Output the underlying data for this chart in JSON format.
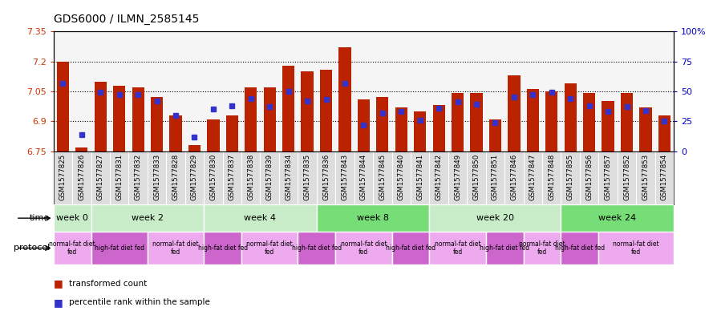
{
  "title": "GDS6000 / ILMN_2585145",
  "samples": [
    "GSM1577825",
    "GSM1577826",
    "GSM1577827",
    "GSM1577831",
    "GSM1577832",
    "GSM1577833",
    "GSM1577828",
    "GSM1577829",
    "GSM1577830",
    "GSM1577837",
    "GSM1577838",
    "GSM1577839",
    "GSM1577834",
    "GSM1577835",
    "GSM1577836",
    "GSM1577843",
    "GSM1577844",
    "GSM1577845",
    "GSM1577840",
    "GSM1577841",
    "GSM1577842",
    "GSM1577849",
    "GSM1577850",
    "GSM1577851",
    "GSM1577846",
    "GSM1577847",
    "GSM1577848",
    "GSM1577855",
    "GSM1577856",
    "GSM1577857",
    "GSM1577852",
    "GSM1577853",
    "GSM1577854"
  ],
  "red_values": [
    7.2,
    6.77,
    7.1,
    7.08,
    7.07,
    7.02,
    6.93,
    6.78,
    6.91,
    6.93,
    7.07,
    7.07,
    7.18,
    7.15,
    7.16,
    7.27,
    7.01,
    7.02,
    6.97,
    6.95,
    6.98,
    7.04,
    7.04,
    6.91,
    7.13,
    7.06,
    7.05,
    7.09,
    7.04,
    7.0,
    7.04,
    6.97,
    6.93
  ],
  "blue_values_pct": [
    57,
    14,
    49,
    47,
    47,
    42,
    30,
    12,
    35,
    38,
    44,
    37,
    50,
    42,
    43,
    57,
    22,
    32,
    33,
    26,
    36,
    41,
    39,
    24,
    45,
    47,
    49,
    44,
    38,
    33,
    37,
    34,
    25
  ],
  "ylim_left": [
    6.75,
    7.35
  ],
  "ylim_right": [
    0,
    100
  ],
  "yticks_left": [
    6.75,
    6.9,
    7.05,
    7.2,
    7.35
  ],
  "yticks_right": [
    0,
    25,
    50,
    75,
    100
  ],
  "ytick_labels_left": [
    "6.75",
    "6.9",
    "7.05",
    "7.2",
    "7.35"
  ],
  "ytick_labels_right": [
    "0",
    "25",
    "50",
    "75",
    "100%"
  ],
  "hlines": [
    7.2,
    7.05,
    6.9
  ],
  "time_groups": [
    {
      "label": "week 0",
      "start": 0,
      "end": 2,
      "color": "#c8ecc8"
    },
    {
      "label": "week 2",
      "start": 2,
      "end": 8,
      "color": "#c8ecc8"
    },
    {
      "label": "week 4",
      "start": 8,
      "end": 14,
      "color": "#c8ecc8"
    },
    {
      "label": "week 8",
      "start": 14,
      "end": 20,
      "color": "#77dd77"
    },
    {
      "label": "week 20",
      "start": 20,
      "end": 27,
      "color": "#c8ecc8"
    },
    {
      "label": "week 24",
      "start": 27,
      "end": 33,
      "color": "#77dd77"
    }
  ],
  "protocol_groups": [
    {
      "label": "normal-fat diet\nfed",
      "start": 0,
      "end": 2,
      "color": "#eeaaee"
    },
    {
      "label": "high-fat diet fed",
      "start": 2,
      "end": 5,
      "color": "#cc66cc"
    },
    {
      "label": "normal-fat diet\nfed",
      "start": 5,
      "end": 8,
      "color": "#eeaaee"
    },
    {
      "label": "high-fat diet fed",
      "start": 8,
      "end": 10,
      "color": "#cc66cc"
    },
    {
      "label": "normal-fat diet\nfed",
      "start": 10,
      "end": 13,
      "color": "#eeaaee"
    },
    {
      "label": "high-fat diet fed",
      "start": 13,
      "end": 15,
      "color": "#cc66cc"
    },
    {
      "label": "normal-fat diet\nfed",
      "start": 15,
      "end": 18,
      "color": "#eeaaee"
    },
    {
      "label": "high-fat diet fed",
      "start": 18,
      "end": 20,
      "color": "#cc66cc"
    },
    {
      "label": "normal-fat diet\nfed",
      "start": 20,
      "end": 23,
      "color": "#eeaaee"
    },
    {
      "label": "high-fat diet fed",
      "start": 23,
      "end": 25,
      "color": "#cc66cc"
    },
    {
      "label": "normal-fat diet\nfed",
      "start": 25,
      "end": 27,
      "color": "#eeaaee"
    },
    {
      "label": "high-fat diet fed",
      "start": 27,
      "end": 29,
      "color": "#cc66cc"
    },
    {
      "label": "normal-fat diet\nfed",
      "start": 29,
      "end": 33,
      "color": "#eeaaee"
    }
  ],
  "bar_color": "#bb2200",
  "blue_color": "#3333cc",
  "bar_width": 0.65,
  "background_color": "#ffffff",
  "tick_label_bg": "#dddddd"
}
